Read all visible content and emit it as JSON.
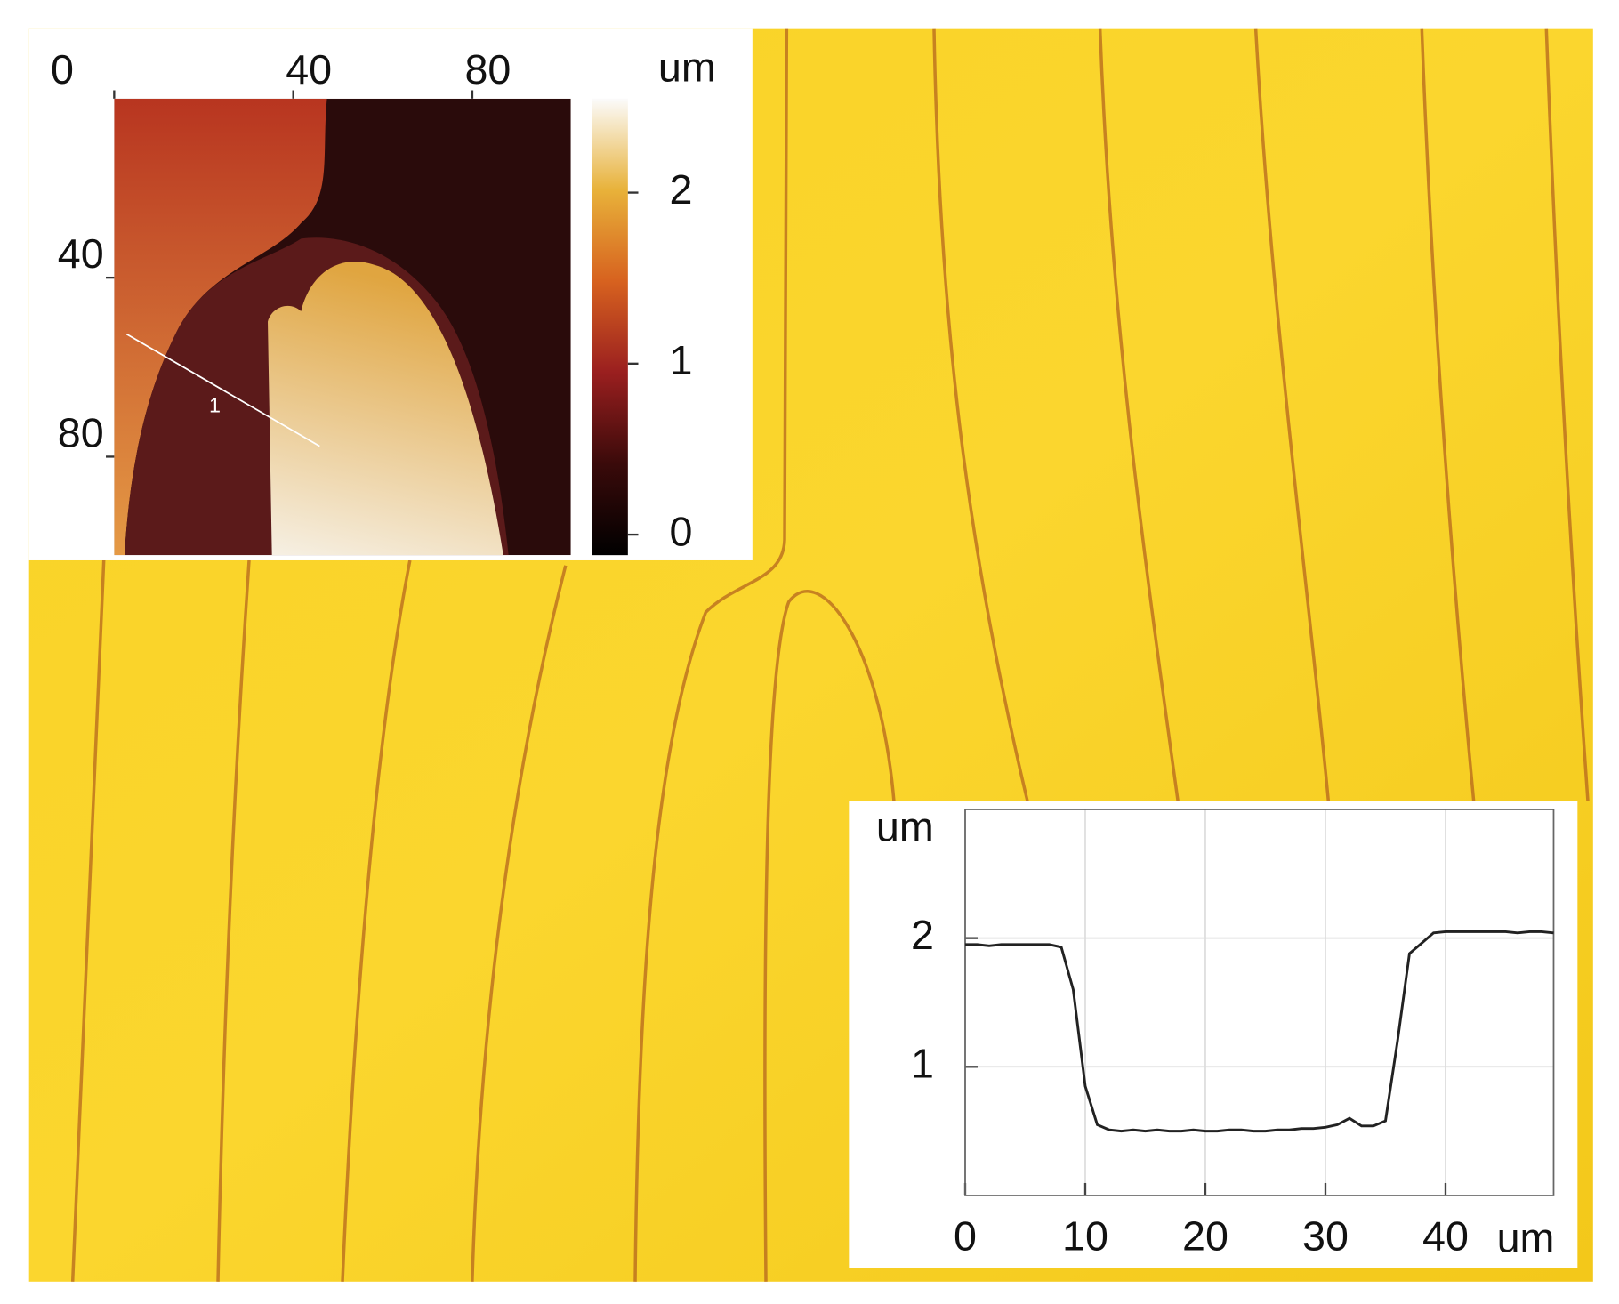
{
  "chart_data": [
    {
      "type": "afm-map",
      "xlim": [
        0,
        102
      ],
      "ylim": [
        0,
        102
      ],
      "xticks": [
        0,
        40,
        80
      ],
      "yticks": [
        40,
        80
      ],
      "annotation": "1",
      "colorbar": {
        "label": "um",
        "zlim": [
          -0.12,
          2.55
        ],
        "zticks": [
          0,
          1,
          2
        ]
      }
    },
    {
      "type": "line",
      "x_label": "um",
      "y_label": "um",
      "color": "#222222",
      "grid": true,
      "xlim": [
        0,
        49
      ],
      "ylim": [
        0,
        3
      ],
      "xticks": [
        0,
        10,
        20,
        30,
        40
      ],
      "yticks": [
        1,
        2
      ],
      "x": [
        0,
        1,
        2,
        3,
        4,
        5,
        6,
        7,
        8,
        9,
        10,
        11,
        12,
        13,
        14,
        15,
        16,
        17,
        18,
        19,
        20,
        21,
        22,
        23,
        24,
        25,
        26,
        27,
        28,
        29,
        30,
        31,
        32,
        33,
        34,
        35,
        36,
        37,
        38,
        39,
        40,
        41,
        42,
        43,
        44,
        45,
        46,
        47,
        48,
        49
      ],
      "values": [
        1.95,
        1.95,
        1.94,
        1.95,
        1.95,
        1.95,
        1.95,
        1.95,
        1.93,
        1.6,
        0.85,
        0.55,
        0.51,
        0.5,
        0.51,
        0.5,
        0.51,
        0.5,
        0.5,
        0.51,
        0.5,
        0.5,
        0.51,
        0.51,
        0.5,
        0.5,
        0.51,
        0.51,
        0.52,
        0.52,
        0.53,
        0.55,
        0.6,
        0.54,
        0.54,
        0.58,
        1.2,
        1.88,
        1.96,
        2.04,
        2.05,
        2.05,
        2.05,
        2.05,
        2.05,
        2.05,
        2.04,
        2.05,
        2.05,
        2.04
      ]
    }
  ]
}
